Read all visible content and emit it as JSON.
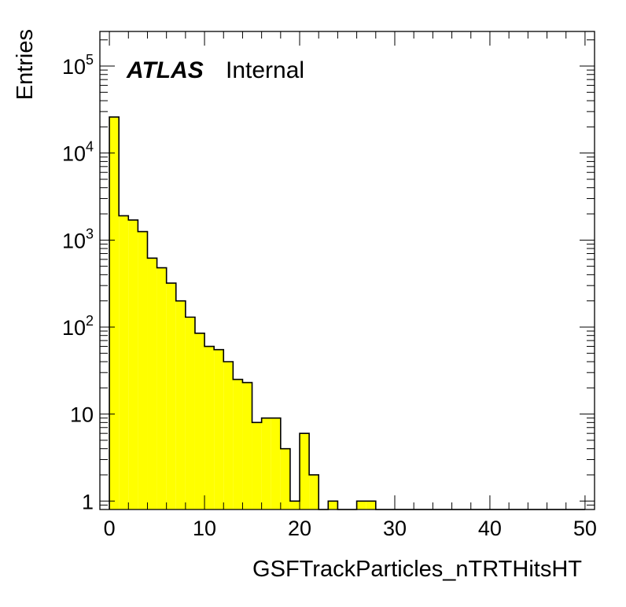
{
  "chart_data": {
    "type": "bar",
    "title": "",
    "xlabel": "GSFTrackParticles_nTRTHitsHT",
    "ylabel": "Entries",
    "xlim": [
      -1,
      51
    ],
    "ylim": [
      0.8,
      250000
    ],
    "y_scale": "log",
    "bin_width": 1,
    "x_ticks": [
      0,
      10,
      20,
      30,
      40,
      50
    ],
    "x_tick_labels": [
      "0",
      "10",
      "20",
      "30",
      "40",
      "50"
    ],
    "y_ticks": [
      1,
      10,
      100,
      1000,
      10000,
      100000
    ],
    "y_tick_labels": [
      {
        "base": "1",
        "exp": ""
      },
      {
        "base": "10",
        "exp": ""
      },
      {
        "base": "10",
        "exp": "2"
      },
      {
        "base": "10",
        "exp": "3"
      },
      {
        "base": "10",
        "exp": "4"
      },
      {
        "base": "10",
        "exp": "5"
      }
    ],
    "series": [
      {
        "fill": "#ffff00",
        "bins_x": [
          0,
          1,
          2,
          3,
          4,
          5,
          6,
          7,
          8,
          9,
          10,
          11,
          12,
          13,
          14,
          15,
          16,
          17,
          18,
          19,
          20,
          21,
          22,
          23,
          24,
          25,
          26,
          27,
          28,
          29,
          30,
          31,
          32,
          33,
          34,
          35,
          36,
          37,
          38,
          39,
          40,
          41,
          42,
          43,
          44,
          45,
          46,
          47,
          48,
          49
        ],
        "values": [
          26000,
          1900,
          1700,
          1250,
          620,
          480,
          320,
          200,
          130,
          85,
          60,
          55,
          40,
          25,
          23,
          8,
          9,
          9,
          4,
          1,
          6,
          2,
          0,
          1,
          0,
          0,
          1,
          1,
          0,
          0,
          0,
          0,
          0,
          0,
          0,
          0,
          0,
          0,
          0,
          0,
          0,
          0,
          0,
          0,
          0,
          0,
          0,
          0,
          0,
          0
        ]
      }
    ],
    "legend": "none",
    "grid": false
  },
  "annotation": {
    "atlas": "ATLAS",
    "internal": "Internal"
  }
}
